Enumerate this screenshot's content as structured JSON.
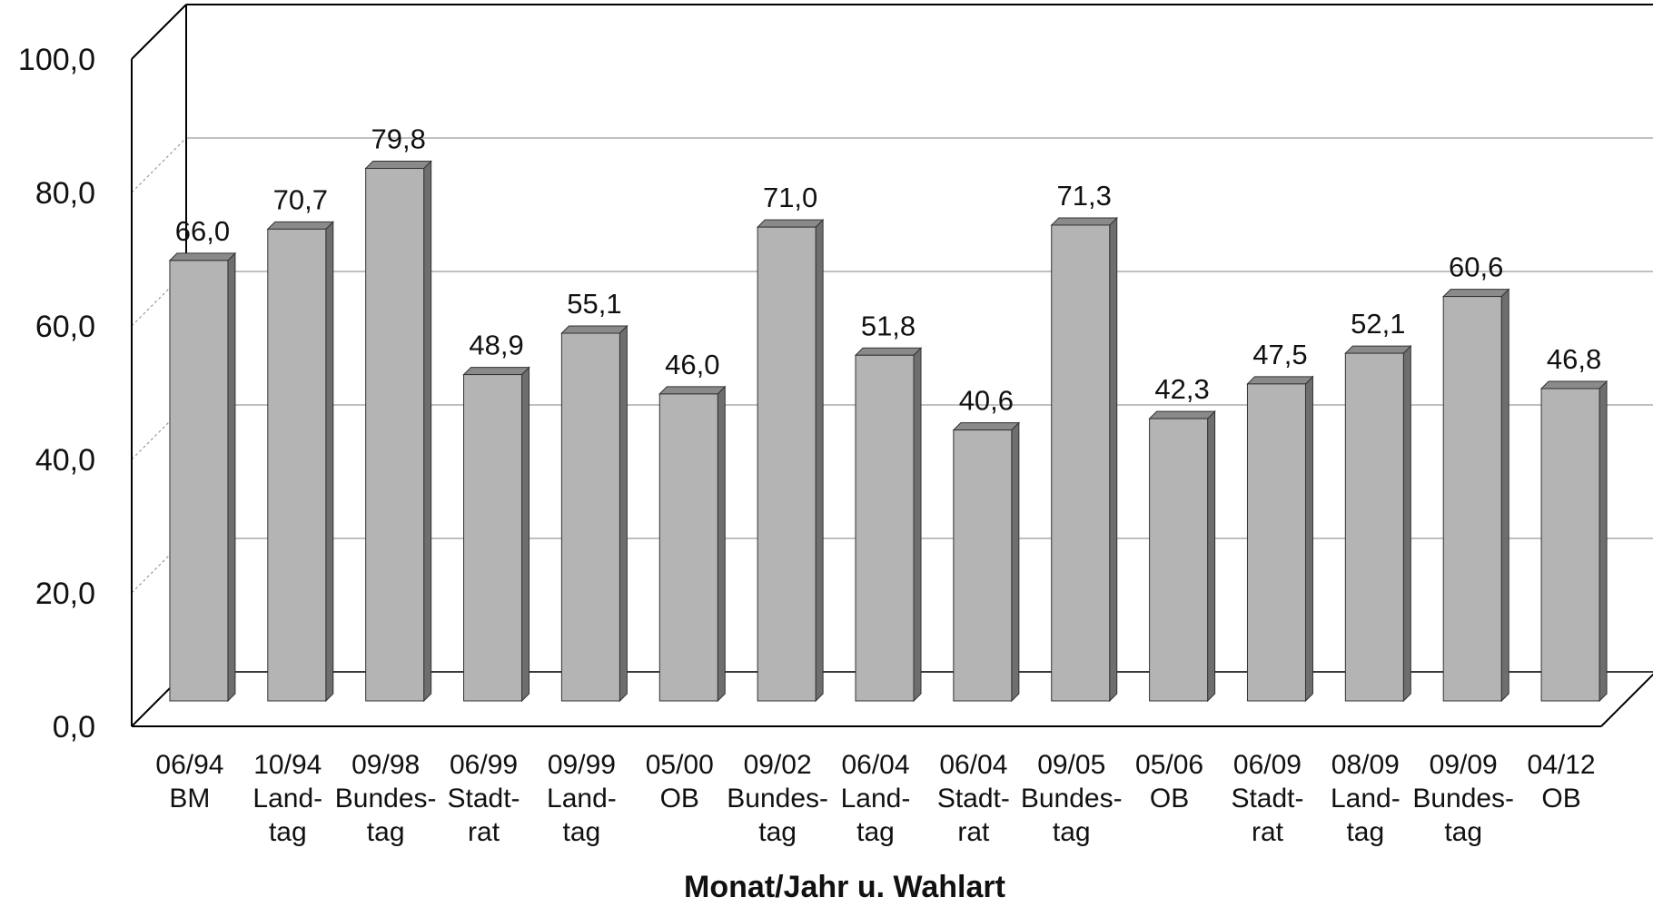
{
  "chart_data": {
    "type": "bar",
    "title": "",
    "xlabel": "Monat/Jahr u. Wahlart",
    "ylabel": "",
    "ylim": [
      0,
      100
    ],
    "yticks": [
      "0,0",
      "20,0",
      "40,0",
      "60,0",
      "80,0",
      "100,0"
    ],
    "categories": [
      [
        "06/94",
        "BM"
      ],
      [
        "10/94",
        "Land-",
        "tag"
      ],
      [
        "09/98",
        "Bundes-",
        "tag"
      ],
      [
        "06/99",
        "Stadt-",
        "rat"
      ],
      [
        "09/99",
        "Land-",
        "tag"
      ],
      [
        "05/00",
        "OB"
      ],
      [
        "09/02",
        "Bundes-",
        "tag"
      ],
      [
        "06/04",
        "Land-",
        "tag"
      ],
      [
        "06/04",
        "Stadt-",
        "rat"
      ],
      [
        "09/05",
        "Bundes-",
        "tag"
      ],
      [
        "05/06",
        "OB"
      ],
      [
        "06/09",
        "Stadt-",
        "rat"
      ],
      [
        "08/09",
        "Land-",
        "tag"
      ],
      [
        "09/09",
        "Bundes-",
        "tag"
      ],
      [
        "04/12",
        "OB"
      ]
    ],
    "values": [
      66.0,
      70.7,
      79.8,
      48.9,
      55.1,
      46.0,
      71.0,
      51.8,
      40.6,
      71.3,
      42.3,
      47.5,
      52.1,
      60.6,
      46.8
    ],
    "value_labels": [
      "66,0",
      "70,7",
      "79,8",
      "48,9",
      "55,1",
      "46,0",
      "71,0",
      "51,8",
      "40,6",
      "71,3",
      "42,3",
      "47,5",
      "52,1",
      "60,6",
      "46,8"
    ],
    "grid": true,
    "style": "3d",
    "colors": {
      "bar": "#b4b4b4",
      "bar_side": "#6e6e6e",
      "bar_top": "#8a8a8a",
      "axis": "#000000",
      "grid": "#9a9a9a"
    }
  }
}
